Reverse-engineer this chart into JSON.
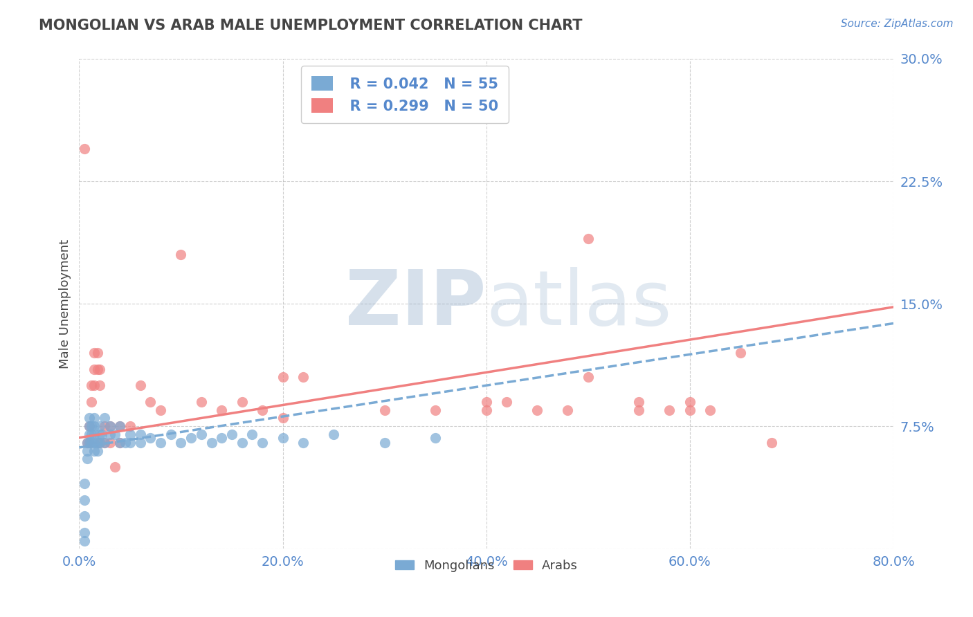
{
  "title": "MONGOLIAN VS ARAB MALE UNEMPLOYMENT CORRELATION CHART",
  "source_text": "Source: ZipAtlas.com",
  "ylabel": "Male Unemployment",
  "xlim": [
    0.0,
    0.8
  ],
  "ylim": [
    0.0,
    0.3
  ],
  "yticks": [
    0.0,
    0.075,
    0.15,
    0.225,
    0.3
  ],
  "ytick_labels": [
    "",
    "7.5%",
    "15.0%",
    "22.5%",
    "30.0%"
  ],
  "xticks": [
    0.0,
    0.2,
    0.4,
    0.6,
    0.8
  ],
  "xtick_labels": [
    "0.0%",
    "20.0%",
    "40.0%",
    "60.0%",
    "80.0%"
  ],
  "mongolian_color": "#7aaad4",
  "arab_color": "#f08080",
  "mongolian_R": 0.042,
  "mongolian_N": 55,
  "arab_R": 0.299,
  "arab_N": 50,
  "background_color": "#FFFFFF",
  "grid_color": "#BBBBBB",
  "axis_label_color": "#5588CC",
  "title_color": "#444444",
  "legend_text_color": "#5588CC",
  "watermark_color": "#c8d8e8",
  "mongolian_line_start_x": 0.0,
  "mongolian_line_start_y": 0.062,
  "mongolian_line_end_x": 0.8,
  "mongolian_line_end_y": 0.138,
  "arab_line_start_x": 0.0,
  "arab_line_start_y": 0.068,
  "arab_line_end_x": 0.8,
  "arab_line_end_y": 0.148,
  "mongolians_x": [
    0.005,
    0.005,
    0.005,
    0.005,
    0.005,
    0.008,
    0.008,
    0.008,
    0.01,
    0.01,
    0.01,
    0.01,
    0.012,
    0.012,
    0.012,
    0.015,
    0.015,
    0.015,
    0.015,
    0.015,
    0.018,
    0.018,
    0.02,
    0.02,
    0.02,
    0.022,
    0.025,
    0.025,
    0.03,
    0.03,
    0.035,
    0.04,
    0.04,
    0.045,
    0.05,
    0.05,
    0.06,
    0.06,
    0.07,
    0.08,
    0.09,
    0.1,
    0.11,
    0.12,
    0.13,
    0.14,
    0.15,
    0.16,
    0.17,
    0.18,
    0.2,
    0.22,
    0.25,
    0.3,
    0.35
  ],
  "mongolians_y": [
    0.005,
    0.01,
    0.02,
    0.03,
    0.04,
    0.055,
    0.06,
    0.065,
    0.065,
    0.07,
    0.075,
    0.08,
    0.065,
    0.07,
    0.075,
    0.06,
    0.065,
    0.07,
    0.075,
    0.08,
    0.06,
    0.065,
    0.065,
    0.07,
    0.075,
    0.07,
    0.065,
    0.08,
    0.07,
    0.075,
    0.07,
    0.065,
    0.075,
    0.065,
    0.07,
    0.065,
    0.07,
    0.065,
    0.068,
    0.065,
    0.07,
    0.065,
    0.068,
    0.07,
    0.065,
    0.068,
    0.07,
    0.065,
    0.07,
    0.065,
    0.068,
    0.065,
    0.07,
    0.065,
    0.068
  ],
  "arabs_x": [
    0.005,
    0.008,
    0.01,
    0.01,
    0.012,
    0.012,
    0.015,
    0.015,
    0.015,
    0.018,
    0.018,
    0.02,
    0.02,
    0.02,
    0.025,
    0.025,
    0.03,
    0.03,
    0.035,
    0.04,
    0.04,
    0.05,
    0.06,
    0.07,
    0.08,
    0.1,
    0.12,
    0.14,
    0.16,
    0.18,
    0.2,
    0.22,
    0.3,
    0.35,
    0.4,
    0.42,
    0.45,
    0.48,
    0.5,
    0.55,
    0.58,
    0.6,
    0.62,
    0.65,
    0.68,
    0.5,
    0.55,
    0.6,
    0.2,
    0.4
  ],
  "arabs_y": [
    0.245,
    0.065,
    0.065,
    0.075,
    0.09,
    0.1,
    0.1,
    0.11,
    0.12,
    0.11,
    0.12,
    0.065,
    0.1,
    0.11,
    0.065,
    0.075,
    0.065,
    0.075,
    0.05,
    0.065,
    0.075,
    0.075,
    0.1,
    0.09,
    0.085,
    0.18,
    0.09,
    0.085,
    0.09,
    0.085,
    0.08,
    0.105,
    0.085,
    0.085,
    0.085,
    0.09,
    0.085,
    0.085,
    0.105,
    0.085,
    0.085,
    0.09,
    0.085,
    0.12,
    0.065,
    0.19,
    0.09,
    0.085,
    0.105,
    0.09
  ]
}
